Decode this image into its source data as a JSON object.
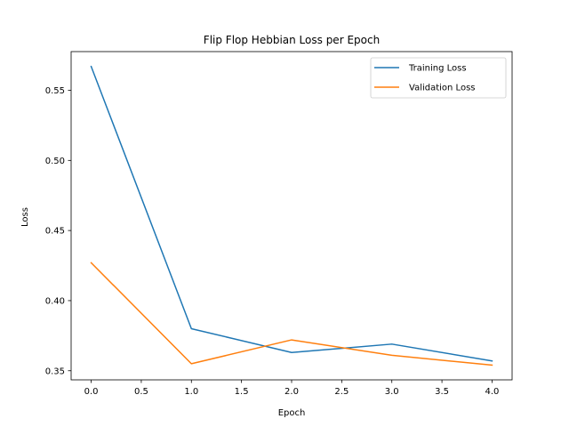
{
  "chart_data": {
    "type": "line",
    "title": "Flip Flop Hebbian Loss per Epoch",
    "xlabel": "Epoch",
    "ylabel": "Loss",
    "x": [
      0,
      1,
      2,
      3,
      4
    ],
    "series": [
      {
        "name": "Training Loss",
        "color": "#1f77b4",
        "values": [
          0.567,
          0.38,
          0.363,
          0.369,
          0.357
        ]
      },
      {
        "name": "Validation Loss",
        "color": "#ff7f0e",
        "values": [
          0.427,
          0.355,
          0.372,
          0.361,
          0.354
        ]
      }
    ],
    "xlim": [
      -0.2,
      4.2
    ],
    "ylim": [
      0.3435,
      0.5776
    ],
    "xticks": [
      0.0,
      0.5,
      1.0,
      1.5,
      2.0,
      2.5,
      3.0,
      3.5,
      4.0
    ],
    "xtick_labels": [
      "0.0",
      "0.5",
      "1.0",
      "1.5",
      "2.0",
      "2.5",
      "3.0",
      "3.5",
      "4.0"
    ],
    "yticks": [
      0.35,
      0.4,
      0.45,
      0.5,
      0.55
    ],
    "ytick_labels": [
      "0.35",
      "0.40",
      "0.45",
      "0.50",
      "0.55"
    ],
    "grid": false,
    "legend": "upper-right"
  }
}
